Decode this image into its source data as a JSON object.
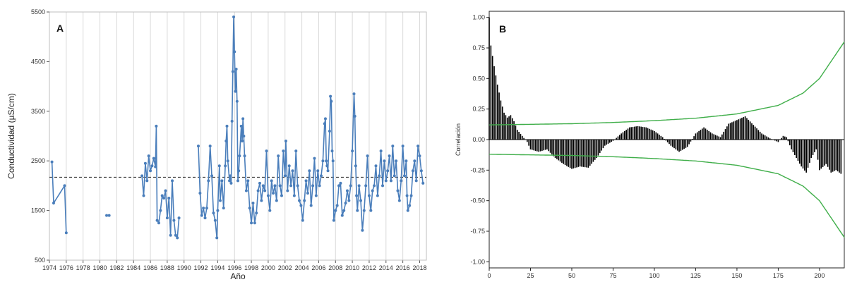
{
  "chart_data": [
    {
      "type": "line",
      "panel_label": "A",
      "xlabel": "Año",
      "ylabel": "Conductividad (µS/cm)",
      "xlim": [
        1974,
        2018.8
      ],
      "ylim": [
        500,
        5500
      ],
      "x_ticks": [
        "1974",
        "1976",
        "1978",
        "1980",
        "1982",
        "1984",
        "1986",
        "1988",
        "1990",
        "1992",
        "1994",
        "1996",
        "1998",
        "2000",
        "2002",
        "2004",
        "2006",
        "2008",
        "2010",
        "2012",
        "2014",
        "2016",
        "2018"
      ],
      "y_ticks": [
        "500",
        "1500",
        "2500",
        "3500",
        "4500",
        "5500"
      ],
      "grid": "vertical",
      "reference_line": 2170,
      "color": "#4a7ebb",
      "segments": [
        [
          [
            1974.3,
            2480
          ],
          [
            1974.5,
            1650
          ],
          [
            1975.8,
            2000
          ],
          [
            1976.0,
            1050
          ]
        ],
        [
          [
            1980.8,
            1400
          ],
          [
            1981.1,
            1400
          ]
        ],
        [
          [
            1985.0,
            2200
          ],
          [
            1985.2,
            1800
          ],
          [
            1985.4,
            2450
          ],
          [
            1985.6,
            2100
          ],
          [
            1985.8,
            2600
          ],
          [
            1986.0,
            2300
          ],
          [
            1986.2,
            2400
          ],
          [
            1986.4,
            2550
          ],
          [
            1986.6,
            2380
          ],
          [
            1986.7,
            3200
          ],
          [
            1986.8,
            1300
          ],
          [
            1987.0,
            1250
          ],
          [
            1987.2,
            1500
          ],
          [
            1987.4,
            1800
          ],
          [
            1987.6,
            1750
          ],
          [
            1987.8,
            1900
          ],
          [
            1988.0,
            1350
          ],
          [
            1988.2,
            1750
          ],
          [
            1988.4,
            1000
          ],
          [
            1988.6,
            2100
          ],
          [
            1988.8,
            1300
          ],
          [
            1989.0,
            1000
          ],
          [
            1989.2,
            950
          ],
          [
            1989.4,
            1350
          ]
        ],
        [
          [
            1991.7,
            2800
          ],
          [
            1991.9,
            1850
          ],
          [
            1992.1,
            1400
          ],
          [
            1992.3,
            1550
          ],
          [
            1992.5,
            1350
          ],
          [
            1992.7,
            1550
          ],
          [
            1992.9,
            2100
          ],
          [
            1993.1,
            2800
          ],
          [
            1993.3,
            2200
          ],
          [
            1993.5,
            1450
          ],
          [
            1993.7,
            1300
          ],
          [
            1993.9,
            950
          ],
          [
            1994.0,
            1500
          ],
          [
            1994.2,
            2400
          ],
          [
            1994.3,
            1700
          ],
          [
            1994.5,
            2100
          ],
          [
            1994.7,
            1550
          ],
          [
            1994.9,
            2400
          ],
          [
            1995.0,
            2900
          ],
          [
            1995.1,
            3200
          ],
          [
            1995.2,
            2500
          ],
          [
            1995.4,
            2100
          ],
          [
            1995.5,
            2200
          ],
          [
            1995.6,
            2050
          ],
          [
            1995.7,
            3300
          ],
          [
            1995.8,
            4300
          ],
          [
            1995.9,
            5400
          ],
          [
            1996.0,
            4700
          ],
          [
            1996.1,
            3900
          ],
          [
            1996.2,
            4350
          ],
          [
            1996.3,
            3700
          ],
          [
            1996.4,
            2100
          ],
          [
            1996.5,
            2300
          ],
          [
            1996.6,
            2600
          ],
          [
            1996.8,
            3200
          ],
          [
            1996.9,
            2900
          ],
          [
            1997.0,
            3350
          ],
          [
            1997.1,
            3000
          ],
          [
            1997.2,
            2600
          ],
          [
            1997.4,
            1900
          ],
          [
            1997.6,
            2100
          ],
          [
            1997.8,
            1550
          ],
          [
            1998.0,
            1250
          ],
          [
            1998.2,
            1650
          ],
          [
            1998.4,
            1250
          ],
          [
            1998.6,
            1450
          ],
          [
            1998.8,
            1900
          ],
          [
            1999.0,
            2050
          ],
          [
            1999.2,
            1700
          ],
          [
            1999.4,
            2000
          ],
          [
            1999.6,
            1900
          ],
          [
            1999.8,
            2700
          ],
          [
            2000.0,
            1800
          ],
          [
            2000.2,
            1500
          ],
          [
            2000.4,
            2100
          ],
          [
            2000.6,
            1850
          ],
          [
            2000.8,
            2000
          ],
          [
            2001.0,
            1700
          ],
          [
            2001.2,
            2600
          ],
          [
            2001.4,
            2000
          ],
          [
            2001.6,
            1800
          ],
          [
            2001.8,
            2700
          ],
          [
            2002.0,
            2200
          ],
          [
            2002.1,
            2900
          ],
          [
            2002.3,
            1900
          ],
          [
            2002.5,
            2400
          ],
          [
            2002.7,
            2000
          ],
          [
            2002.9,
            2300
          ],
          [
            2003.1,
            1800
          ],
          [
            2003.3,
            2700
          ],
          [
            2003.5,
            2000
          ],
          [
            2003.7,
            1700
          ],
          [
            2003.9,
            1600
          ],
          [
            2004.1,
            1300
          ],
          [
            2004.3,
            1700
          ],
          [
            2004.5,
            2100
          ],
          [
            2004.7,
            1850
          ],
          [
            2004.9,
            2300
          ],
          [
            2005.1,
            1600
          ],
          [
            2005.3,
            2000
          ],
          [
            2005.5,
            2550
          ],
          [
            2005.7,
            1800
          ],
          [
            2005.9,
            2300
          ],
          [
            2006.1,
            2000
          ],
          [
            2006.3,
            2200
          ],
          [
            2006.5,
            2500
          ],
          [
            2006.7,
            3250
          ],
          [
            2006.8,
            3350
          ],
          [
            2006.9,
            2500
          ],
          [
            2007.0,
            2400
          ],
          [
            2007.1,
            2300
          ],
          [
            2007.3,
            3100
          ],
          [
            2007.4,
            3800
          ],
          [
            2007.5,
            3700
          ],
          [
            2007.6,
            2700
          ],
          [
            2007.7,
            2500
          ],
          [
            2007.8,
            1300
          ],
          [
            2008.0,
            1500
          ],
          [
            2008.2,
            1600
          ],
          [
            2008.4,
            2000
          ],
          [
            2008.6,
            2050
          ],
          [
            2008.8,
            1400
          ],
          [
            2009.0,
            1500
          ],
          [
            2009.2,
            1650
          ],
          [
            2009.4,
            1900
          ],
          [
            2009.6,
            1700
          ],
          [
            2009.8,
            2000
          ],
          [
            2010.0,
            2700
          ],
          [
            2010.2,
            3850
          ],
          [
            2010.3,
            3400
          ],
          [
            2010.4,
            2400
          ],
          [
            2010.5,
            1800
          ],
          [
            2010.6,
            1500
          ],
          [
            2010.8,
            2000
          ],
          [
            2011.0,
            1700
          ],
          [
            2011.2,
            1100
          ],
          [
            2011.4,
            1500
          ],
          [
            2011.6,
            2000
          ],
          [
            2011.8,
            2600
          ],
          [
            2012.0,
            1800
          ],
          [
            2012.2,
            1500
          ],
          [
            2012.4,
            1900
          ],
          [
            2012.6,
            2000
          ],
          [
            2012.8,
            2400
          ],
          [
            2013.0,
            1800
          ],
          [
            2013.2,
            2200
          ],
          [
            2013.4,
            2700
          ],
          [
            2013.6,
            2000
          ],
          [
            2013.8,
            2500
          ],
          [
            2014.0,
            2100
          ],
          [
            2014.2,
            2300
          ],
          [
            2014.4,
            2600
          ],
          [
            2014.6,
            2100
          ],
          [
            2014.8,
            2800
          ],
          [
            2015.0,
            2200
          ],
          [
            2015.2,
            2500
          ],
          [
            2015.4,
            1900
          ],
          [
            2015.6,
            1700
          ],
          [
            2015.8,
            2100
          ],
          [
            2016.0,
            2800
          ],
          [
            2016.2,
            2200
          ],
          [
            2016.4,
            2500
          ],
          [
            2016.5,
            1800
          ],
          [
            2016.6,
            1500
          ],
          [
            2016.8,
            1600
          ],
          [
            2017.0,
            1800
          ],
          [
            2017.2,
            2300
          ],
          [
            2017.4,
            2500
          ],
          [
            2017.6,
            2100
          ],
          [
            2017.8,
            2800
          ],
          [
            2018.0,
            2600
          ],
          [
            2018.2,
            2300
          ],
          [
            2018.4,
            2050
          ]
        ]
      ]
    },
    {
      "type": "bar",
      "panel_label": "B",
      "xlabel": "",
      "ylabel": "Correlación",
      "xlim": [
        0,
        215
      ],
      "ylim": [
        -1.05,
        1.05
      ],
      "x_ticks": [
        "0",
        "25",
        "50",
        "75",
        "100",
        "125",
        "150",
        "175",
        "200"
      ],
      "y_ticks": [
        "1.00",
        "0.75",
        "0.50",
        "0.25",
        "0.00",
        "-0.25",
        "-0.50",
        "-0.75",
        "-1.00"
      ],
      "bar_color": "#000000",
      "confidence_band_color": "#3fae49",
      "confidence_band": [
        [
          0,
          0.12
        ],
        [
          25,
          0.125
        ],
        [
          50,
          0.13
        ],
        [
          75,
          0.14
        ],
        [
          100,
          0.155
        ],
        [
          125,
          0.175
        ],
        [
          150,
          0.21
        ],
        [
          175,
          0.28
        ],
        [
          190,
          0.38
        ],
        [
          200,
          0.5
        ],
        [
          210,
          0.7
        ],
        [
          215,
          0.8
        ]
      ],
      "acf_profile": [
        [
          0,
          1.0
        ],
        [
          1,
          0.77
        ],
        [
          3,
          0.6
        ],
        [
          5,
          0.45
        ],
        [
          7,
          0.32
        ],
        [
          9,
          0.22
        ],
        [
          11,
          0.18
        ],
        [
          13,
          0.2
        ],
        [
          15,
          0.15
        ],
        [
          17,
          0.08
        ],
        [
          20,
          0.03
        ],
        [
          23,
          -0.02
        ],
        [
          25,
          -0.08
        ],
        [
          30,
          -0.1
        ],
        [
          35,
          -0.08
        ],
        [
          40,
          -0.15
        ],
        [
          45,
          -0.2
        ],
        [
          50,
          -0.24
        ],
        [
          55,
          -0.22
        ],
        [
          60,
          -0.23
        ],
        [
          65,
          -0.15
        ],
        [
          70,
          -0.05
        ],
        [
          75,
          -0.01
        ],
        [
          80,
          0.05
        ],
        [
          85,
          0.1
        ],
        [
          90,
          0.11
        ],
        [
          95,
          0.1
        ],
        [
          100,
          0.07
        ],
        [
          105,
          0.02
        ],
        [
          110,
          -0.05
        ],
        [
          115,
          -0.1
        ],
        [
          120,
          -0.06
        ],
        [
          125,
          0.05
        ],
        [
          130,
          0.1
        ],
        [
          135,
          0.05
        ],
        [
          140,
          0.02
        ],
        [
          145,
          0.13
        ],
        [
          150,
          0.16
        ],
        [
          155,
          0.19
        ],
        [
          160,
          0.12
        ],
        [
          165,
          0.05
        ],
        [
          170,
          0.01
        ],
        [
          175,
          -0.02
        ],
        [
          178,
          0.03
        ],
        [
          180,
          0.02
        ],
        [
          183,
          -0.08
        ],
        [
          186,
          -0.15
        ],
        [
          189,
          -0.22
        ],
        [
          192,
          -0.27
        ],
        [
          195,
          -0.15
        ],
        [
          198,
          -0.08
        ],
        [
          200,
          -0.25
        ],
        [
          204,
          -0.2
        ],
        [
          207,
          -0.27
        ],
        [
          210,
          -0.25
        ],
        [
          213,
          -0.28
        ]
      ]
    }
  ]
}
